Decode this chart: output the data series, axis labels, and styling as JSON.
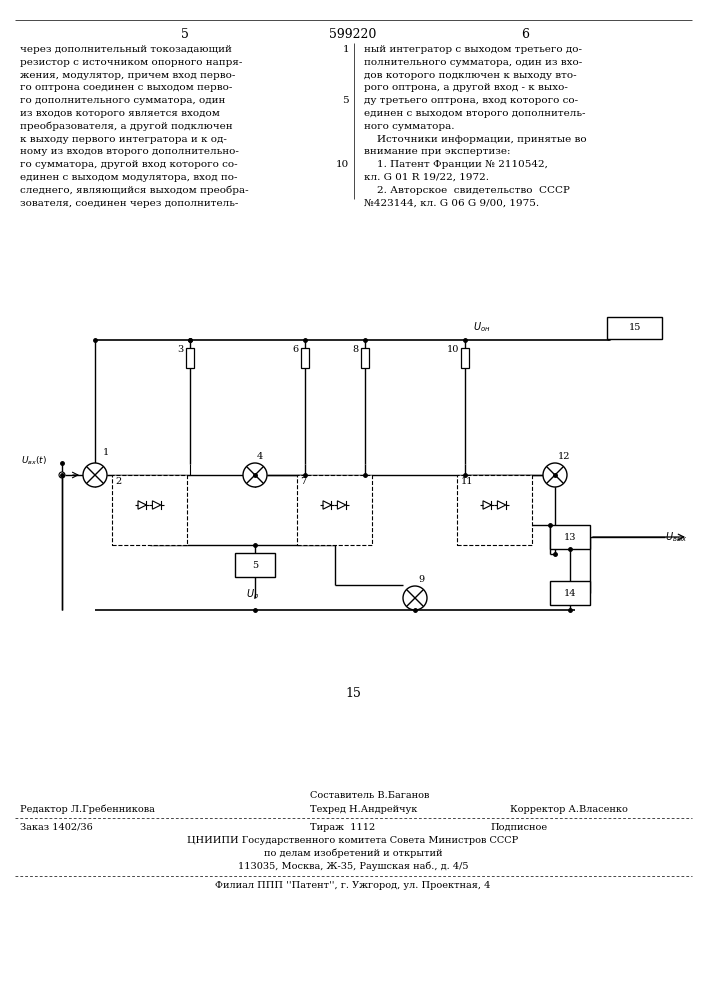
{
  "page_number_left": "5",
  "patent_number": "599220",
  "page_number_right": "6",
  "text_left_lines": [
    "через дополнительный токозадающий",
    "резистор с источником опорного напря-",
    "жения, модулятор, причем вход перво-",
    "го оптрона соединен с выходом перво-",
    "го дополнительного сумматора, один",
    "из входов которого является входом",
    "преобразователя, а другой подключен",
    "к выходу первого интегратора и к од-",
    "ному из входов второго дополнительно-",
    "го сумматора, другой вход которого со-",
    "единен с выходом модулятора, вход по-",
    "следнего, являющийся выходом преобра-",
    "зователя, соединен через дополнитель-"
  ],
  "text_right_lines": [
    "ный интегратор с выходом третьего до-",
    "полнительного сумматора, один из вхо-",
    "дов которого подключен к выходу вто-",
    "рого оптрона, а другой вход - к выхо-",
    "ду третьего оптрона, вход которого со-",
    "единен с выходом второго дополнитель-",
    "ного сумматора.",
    "    Источники информации, принятые во",
    "внимание при экспертизе:",
    "    1. Патент Франции № 2110542,",
    "кл. G 01 R 19/22, 1972.",
    "    2. Авторское  свидетельство  СССР",
    "№423144, кл. G 06 G 9/00, 1975."
  ],
  "line_number_positions": {
    "0": "1",
    "4": "5",
    "9": "10"
  },
  "center_label": "15",
  "footer_composer": "Составитель В.Баганов",
  "footer_editor": "Редактор Л.Гребенникова",
  "footer_techred": "Техред Н.Андрейчук",
  "footer_corrector": "Корректор А.Власенко",
  "footer_order": "Заказ 1402/36",
  "footer_circulation": "Тираж  1112",
  "footer_subscription": "Подписное",
  "footer_institute": "ЦНИИПИ Государственного комитета Совета Министров СССР",
  "footer_dept": "по делам изобретений и открытий",
  "footer_address": "113035, Москва, Ж-35, Раушская наб., д. 4/5",
  "footer_branch": "Филиал ППП ''Патент'', г. Ужгород, ул. Проектная, 4",
  "bg_color": "#ffffff"
}
